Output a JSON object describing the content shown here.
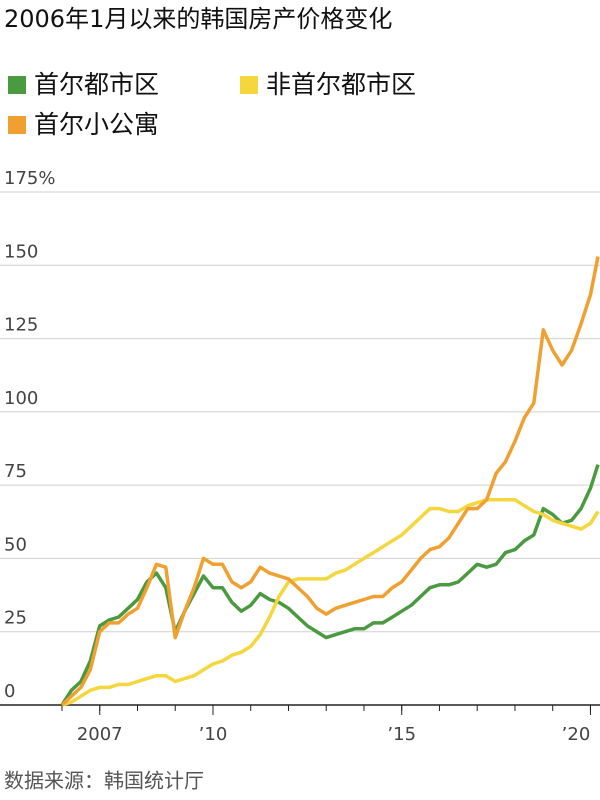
{
  "chart_data": {
    "type": "line",
    "title": "2006年1月以来的韩国房产价格变化",
    "source": "数据来源：韩国统计厅",
    "x": [
      2006.0,
      2006.25,
      2006.5,
      2006.75,
      2007.0,
      2007.25,
      2007.5,
      2007.75,
      2008.0,
      2008.25,
      2008.5,
      2008.75,
      2009.0,
      2009.25,
      2009.5,
      2009.75,
      2010.0,
      2010.25,
      2010.5,
      2010.75,
      2011.0,
      2011.25,
      2011.5,
      2011.75,
      2012.0,
      2012.25,
      2012.5,
      2012.75,
      2013.0,
      2013.25,
      2013.5,
      2013.75,
      2014.0,
      2014.25,
      2014.5,
      2014.75,
      2015.0,
      2015.25,
      2015.5,
      2015.75,
      2016.0,
      2016.25,
      2016.5,
      2016.75,
      2017.0,
      2017.25,
      2017.5,
      2017.75,
      2018.0,
      2018.25,
      2018.5,
      2018.75,
      2019.0,
      2019.25,
      2019.5,
      2019.75,
      2020.0,
      2020.2
    ],
    "series": [
      {
        "name": "首尔都市区",
        "color": "#4a9a3f",
        "values": [
          0,
          5,
          8,
          15,
          27,
          29,
          30,
          33,
          36,
          42,
          45,
          40,
          25,
          32,
          38,
          44,
          40,
          40,
          35,
          32,
          34,
          38,
          36,
          35,
          33,
          30,
          27,
          25,
          23,
          24,
          25,
          26,
          26,
          28,
          28,
          30,
          32,
          34,
          37,
          40,
          41,
          41,
          42,
          45,
          48,
          47,
          48,
          52,
          53,
          56,
          58,
          67,
          65,
          62,
          63,
          67,
          74,
          82
        ]
      },
      {
        "name": "非首尔都市区",
        "color": "#f5d63d",
        "values": [
          0,
          1,
          3,
          5,
          6,
          6,
          7,
          7,
          8,
          9,
          10,
          10,
          8,
          9,
          10,
          12,
          14,
          15,
          17,
          18,
          20,
          24,
          30,
          37,
          42,
          43,
          43,
          43,
          43,
          45,
          46,
          48,
          50,
          52,
          54,
          56,
          58,
          61,
          64,
          67,
          67,
          66,
          66,
          68,
          69,
          70,
          70,
          70,
          70,
          68,
          66,
          65,
          63,
          62,
          61,
          60,
          62,
          66
        ]
      },
      {
        "name": "首尔小公寓",
        "color": "#f0a030",
        "values": [
          0,
          3,
          6,
          12,
          25,
          28,
          28,
          31,
          33,
          40,
          48,
          47,
          23,
          32,
          40,
          50,
          48,
          48,
          42,
          40,
          42,
          47,
          45,
          44,
          43,
          40,
          37,
          33,
          31,
          33,
          34,
          35,
          36,
          37,
          37,
          40,
          42,
          46,
          50,
          53,
          54,
          57,
          62,
          67,
          67,
          70,
          79,
          83,
          90,
          98,
          103,
          128,
          121,
          116,
          121,
          130,
          140,
          153
        ]
      }
    ],
    "xlim": [
      2006,
      2020.2
    ],
    "xticks": [
      {
        "value": 2007,
        "label": "2007"
      },
      {
        "value": 2010,
        "label": "’10"
      },
      {
        "value": 2015,
        "label": "’15"
      },
      {
        "value": 2020,
        "label": "’20"
      }
    ],
    "x_minor_ticks": [
      2006,
      2007,
      2008,
      2009,
      2010,
      2011,
      2012,
      2013,
      2014,
      2015,
      2016,
      2017,
      2018,
      2019,
      2020
    ],
    "ylim": [
      0,
      175
    ],
    "yticks": [
      0,
      25,
      50,
      75,
      100,
      125,
      150,
      {
        "value": 175,
        "label": "175%"
      }
    ],
    "grid": true
  }
}
